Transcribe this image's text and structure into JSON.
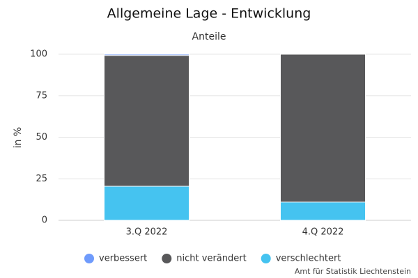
{
  "chart_data": {
    "type": "stacked_bar",
    "title": "Allgemeine Lage - Entwicklung",
    "subtitle": "Anteile",
    "y_label": "in %",
    "credit": "Amt für Statistik Liechtenstein",
    "categories": [
      "3.Q 2022",
      "4.Q 2022"
    ],
    "series": [
      {
        "name": "verbessert",
        "color": "#6f9bfc",
        "values": [
          0.7,
          0
        ]
      },
      {
        "name": "nicht verändert",
        "color": "#58585a",
        "values": [
          78.8,
          89
        ]
      },
      {
        "name": "verschlechtert",
        "color": "#45c3f0",
        "values": [
          20.5,
          11
        ]
      }
    ],
    "ylim": [
      0,
      100
    ],
    "yticks": [
      0,
      25,
      50,
      75,
      100
    ],
    "grid": true
  }
}
